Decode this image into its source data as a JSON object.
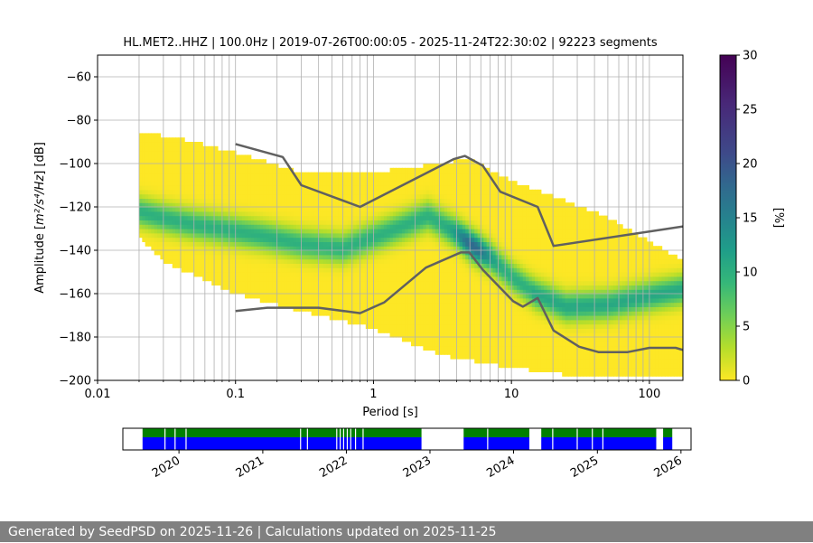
{
  "figure": {
    "footer": "Generated by SeedPSD on 2025-11-26 | Calculations updated on 2025-11-25",
    "colors": {
      "background": "#ffffff",
      "footer_bg": "#808080",
      "noise_lines": "#606060",
      "coverage_data": "#008000",
      "coverage_gaps": "#0000ff"
    }
  },
  "chart_data": [
    {
      "type": "heatmap",
      "title": "HL.MET2..HHZ | 100.0Hz | 2019-07-26T00:00:05 - 2025-11-24T22:30:02 | 92223 segments",
      "xlabel": "Period [s]",
      "ylabel_prefix": "Amplitude [",
      "ylabel_units": "m²/s⁴/Hz",
      "ylabel_suffix": "] [dB]",
      "x_scale": "log",
      "xlim": [
        0.01,
        175
      ],
      "ylim": [
        -200,
        -50
      ],
      "x_ticks": [
        {
          "value": 0.01,
          "label": "0.01"
        },
        {
          "value": 0.1,
          "label": "0.1"
        },
        {
          "value": 1,
          "label": "1"
        },
        {
          "value": 10,
          "label": "10"
        },
        {
          "value": 100,
          "label": "100"
        }
      ],
      "y_ticks": [
        {
          "value": -60,
          "label": "−60"
        },
        {
          "value": -80,
          "label": "−80"
        },
        {
          "value": -100,
          "label": "−100"
        },
        {
          "value": -120,
          "label": "−120"
        },
        {
          "value": -140,
          "label": "−140"
        },
        {
          "value": -160,
          "label": "−160"
        },
        {
          "value": -180,
          "label": "−180"
        },
        {
          "value": -200,
          "label": "−200"
        }
      ],
      "grid": true,
      "colormap": "viridis",
      "colorbar": {
        "label": "[%]",
        "range": [
          0,
          30
        ],
        "ticks": [
          {
            "value": 0,
            "label": "0"
          },
          {
            "value": 5,
            "label": "5"
          },
          {
            "value": 10,
            "label": "10"
          },
          {
            "value": 15,
            "label": "15"
          },
          {
            "value": 20,
            "label": "20"
          },
          {
            "value": 25,
            "label": "25"
          },
          {
            "value": 30,
            "label": "30"
          }
        ]
      },
      "mode_curve": [
        [
          0.02,
          -122
        ],
        [
          0.03,
          -125
        ],
        [
          0.05,
          -128
        ],
        [
          0.08,
          -130
        ],
        [
          0.15,
          -133
        ],
        [
          0.3,
          -137
        ],
        [
          0.6,
          -139
        ],
        [
          1.2,
          -132
        ],
        [
          2.5,
          -124
        ],
        [
          4,
          -132
        ],
        [
          5,
          -137
        ],
        [
          7,
          -143
        ],
        [
          10,
          -152
        ],
        [
          15,
          -160
        ],
        [
          25,
          -166
        ],
        [
          50,
          -165
        ],
        [
          100,
          -161
        ],
        [
          175,
          -158
        ]
      ],
      "upper_envelope": [
        [
          0.02,
          -85
        ],
        [
          0.05,
          -90
        ],
        [
          0.1,
          -95
        ],
        [
          0.3,
          -104
        ],
        [
          1,
          -104
        ],
        [
          3,
          -100
        ],
        [
          5,
          -98
        ],
        [
          10,
          -108
        ],
        [
          20,
          -115
        ],
        [
          50,
          -125
        ],
        [
          175,
          -145
        ]
      ],
      "lower_envelope": [
        [
          0.02,
          -134
        ],
        [
          0.03,
          -145
        ],
        [
          0.1,
          -160
        ],
        [
          0.3,
          -168
        ],
        [
          1,
          -176
        ],
        [
          3,
          -188
        ],
        [
          10,
          -194
        ],
        [
          30,
          -198
        ],
        [
          175,
          -199
        ]
      ],
      "series": [
        {
          "points": [
            [
              0.1,
              -91
            ],
            [
              0.22,
              -97
            ],
            [
              0.3,
              -110
            ],
            [
              0.8,
              -120
            ],
            [
              3.8,
              -98
            ],
            [
              4.6,
              -96.5
            ],
            [
              6.2,
              -101
            ],
            [
              8.3,
              -113
            ],
            [
              15.5,
              -120
            ],
            [
              20.2,
              -138
            ],
            [
              176,
              -129
            ]
          ]
        },
        {
          "points": [
            [
              0.1,
              -168
            ],
            [
              0.17,
              -166.5
            ],
            [
              0.4,
              -166.5
            ],
            [
              0.8,
              -169
            ],
            [
              1.2,
              -164
            ],
            [
              2.4,
              -148
            ],
            [
              4.3,
              -141
            ],
            [
              4.95,
              -141
            ],
            [
              6.2,
              -149
            ],
            [
              10.3,
              -163.5
            ],
            [
              12.1,
              -166
            ],
            [
              15.5,
              -162
            ],
            [
              20.2,
              -177
            ],
            [
              31,
              -184.5
            ],
            [
              43,
              -187
            ],
            [
              69,
              -187
            ],
            [
              100,
              -185
            ],
            [
              155,
              -185
            ],
            [
              176,
              -186
            ]
          ]
        }
      ]
    },
    {
      "type": "timeline",
      "xlim": [
        "2019-05-01",
        "2026-02-14"
      ],
      "x_ticks": [
        "2020",
        "2021",
        "2022",
        "2023",
        "2024",
        "2025",
        "2026"
      ],
      "blocks": [
        [
          "2019-07-26",
          "2022-11-25"
        ],
        [
          "2023-05-28",
          "2024-03-10"
        ],
        [
          "2024-05-01",
          "2025-09-15"
        ],
        [
          "2025-10-15",
          "2025-11-24"
        ]
      ],
      "gaps": [
        "2019-11-01",
        "2019-12-15",
        "2020-02-01",
        "2021-06-15",
        "2021-07-15",
        "2021-11-20",
        "2021-12-05",
        "2021-12-20",
        "2022-01-05",
        "2022-01-20",
        "2022-02-10",
        "2022-03-15",
        "2023-09-10",
        "2024-06-20",
        "2024-10-05",
        "2024-12-10",
        "2025-01-25"
      ]
    }
  ]
}
